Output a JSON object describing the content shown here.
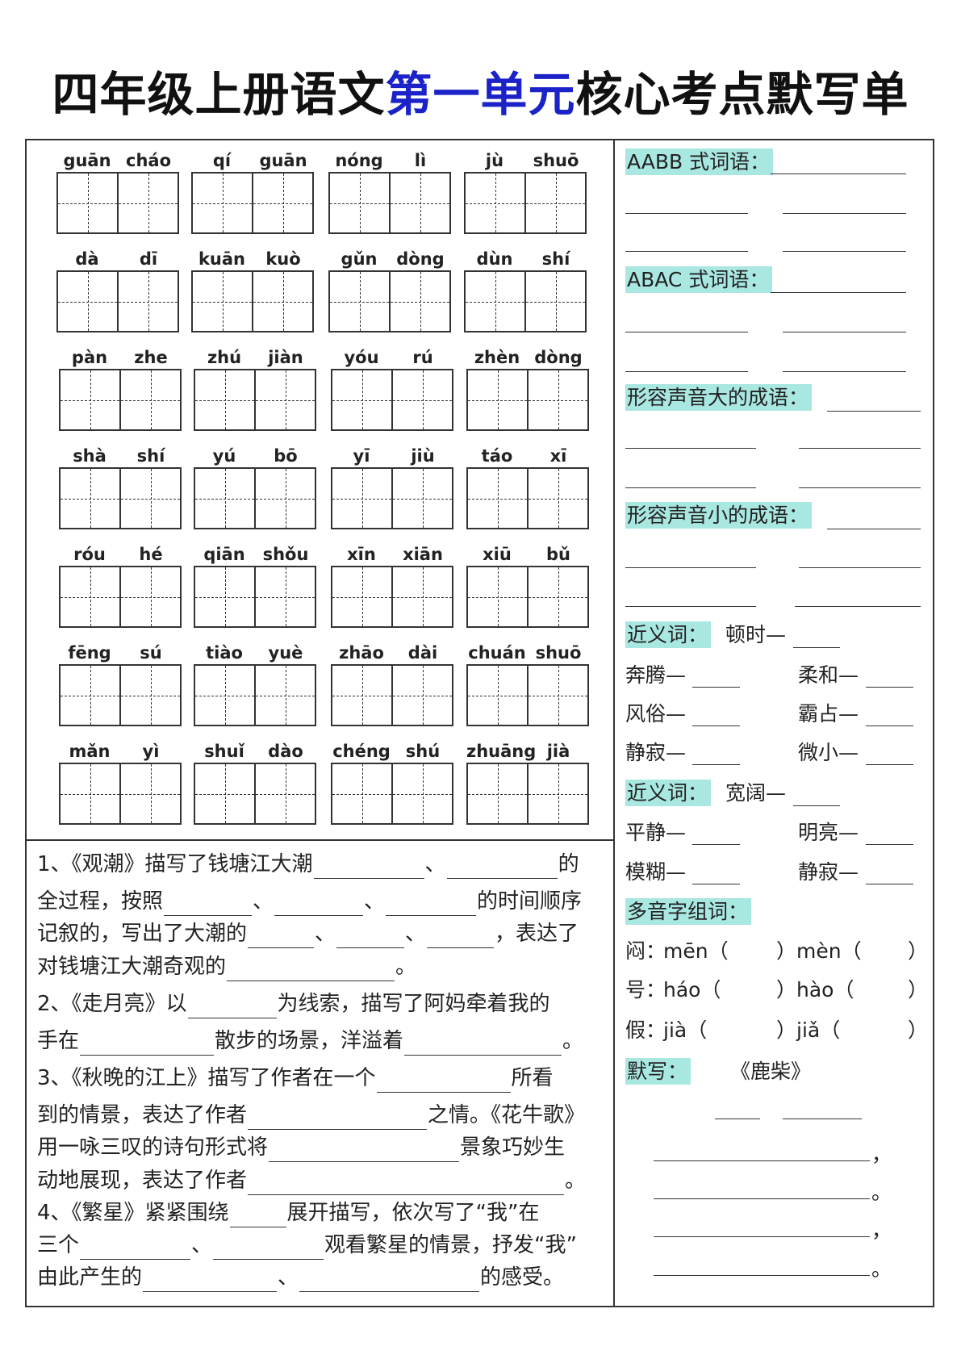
{
  "title": {
    "part1": "四年级上册语文",
    "part2": "第一单元",
    "part3": "核心考点默写单"
  },
  "colors": {
    "title_highlight": "#1a22c8",
    "label_bg": "#a9e7e1"
  },
  "pinyin_rows": [
    [
      [
        "guān",
        "cháo"
      ],
      [
        "qí",
        "guān"
      ],
      [
        "nóng",
        "lì"
      ],
      [
        "jù",
        "shuō"
      ]
    ],
    [
      [
        "dà",
        "dī"
      ],
      [
        "kuān",
        "kuò"
      ],
      [
        "gǔn",
        "dòng"
      ],
      [
        "dùn",
        "shí"
      ]
    ],
    [
      [
        "pàn",
        "zhe"
      ],
      [
        "zhú",
        "jiàn"
      ],
      [
        "yóu",
        "rú"
      ],
      [
        "zhèn",
        "dòng"
      ]
    ],
    [
      [
        "shà",
        "shí"
      ],
      [
        "yú",
        "bō"
      ],
      [
        "yī",
        "jiù"
      ],
      [
        "táo",
        "xī"
      ]
    ],
    [
      [
        "róu",
        "hé"
      ],
      [
        "qiān",
        "shǒu"
      ],
      [
        "xīn",
        "xiān"
      ],
      [
        "xiū",
        "bǔ"
      ]
    ],
    [
      [
        "fēng",
        "sú"
      ],
      [
        "tiào",
        "yuè"
      ],
      [
        "zhāo",
        "dài"
      ],
      [
        "chuán",
        "shuō"
      ]
    ],
    [
      [
        "mǎn",
        "yì"
      ],
      [
        "shuǐ",
        "dào"
      ],
      [
        "chéng",
        "shú"
      ],
      [
        "zhuāng",
        "jià"
      ]
    ]
  ],
  "passage": [
    [
      "1、《观潮》描写了钱塘江大潮",
      "、",
      "的"
    ],
    [
      "全过程，按照",
      "、",
      "、",
      "的时间顺序"
    ],
    [
      "记叙的，写出了大潮的",
      "、",
      "、",
      "，表达了"
    ],
    [
      "对钱塘江大潮奇观的",
      "。"
    ],
    [
      "2、《走月亮》以",
      "为线索，描写了阿妈牵着我的"
    ],
    [
      "手在",
      "散步的场景，洋溢着",
      "。"
    ],
    [
      "3、《秋晚的江上》描写了作者在一个",
      "所看"
    ],
    [
      "到的情景，表达了作者",
      "之情。《花牛歌》"
    ],
    [
      "用一咏三叹的诗句形式将",
      "景象巧妙生"
    ],
    [
      "动地展现，表达了作者",
      "。"
    ],
    [
      "4、《繁星》紧紧围绕",
      "展开描写，依次写了“我”在"
    ],
    [
      "三个",
      "、",
      "观看繁星的情景，抒发“我”"
    ],
    [
      "由此产生的",
      "、",
      "的感受。"
    ]
  ],
  "right": {
    "aabb": "AABB 式词语：",
    "abac": "ABAC 式词语：",
    "loud": "形容声音大的成语：",
    "quiet": "形容声音小的成语：",
    "syn1": {
      "label": "近义词：",
      "first": "顿时—",
      "items": [
        "奔腾—",
        "柔和—",
        "风俗—",
        "霸占—",
        "静寂—",
        "微小—"
      ]
    },
    "syn2": {
      "label": "近义词：",
      "first": "宽阔—",
      "items": [
        "平静—",
        "明亮—",
        "模糊—",
        "静寂—"
      ]
    },
    "poly": {
      "label": "多音字组词：",
      "rows": [
        {
          "char": "闷：",
          "a": "mēn（",
          "b": "）mèn（",
          "c": "）"
        },
        {
          "char": "号：",
          "a": "háo（",
          "b": "）hào（",
          "c": "）"
        },
        {
          "char": "假：",
          "a": "jià（",
          "b": "）jiǎ（",
          "c": "）"
        }
      ]
    },
    "dictation": {
      "label": "默写：",
      "poem": "《鹿柴》",
      "punct": [
        "，",
        "。",
        "，",
        "。"
      ]
    }
  }
}
